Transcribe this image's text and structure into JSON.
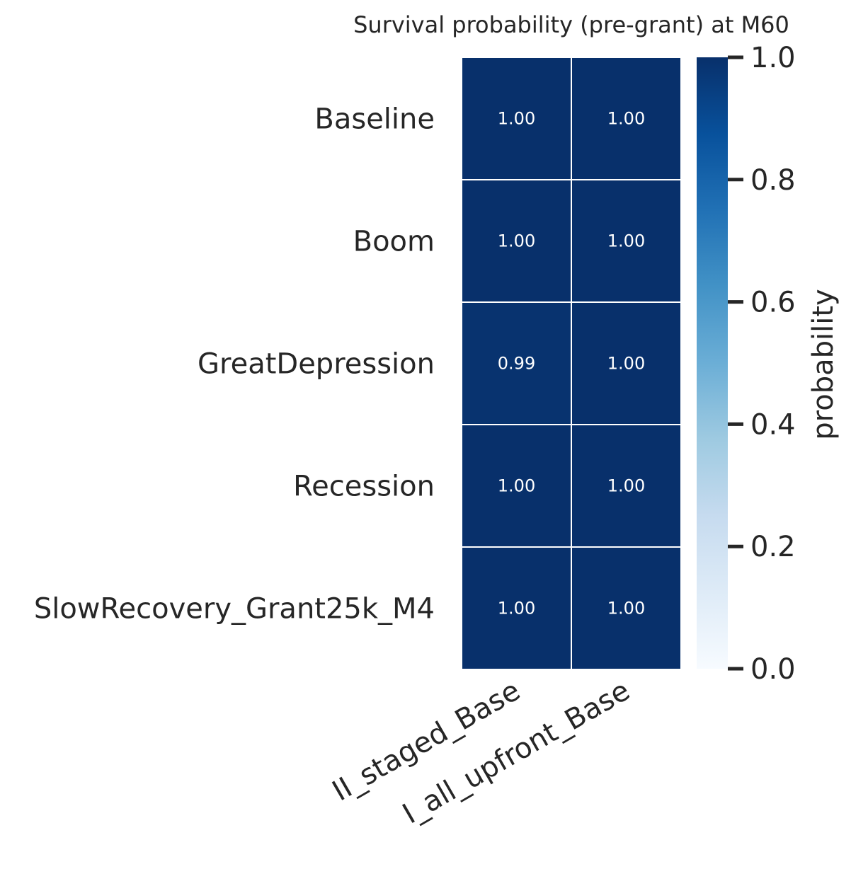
{
  "chart_data": {
    "type": "heatmap",
    "title": "Survival probability (pre-grant) at M60",
    "rows": [
      "Baseline",
      "Boom",
      "GreatDepression",
      "Recession",
      "SlowRecovery_Grant25k_M4"
    ],
    "columns": [
      "II_staged_Base",
      "I_all_upfront_Base"
    ],
    "values": [
      [
        1.0,
        1.0
      ],
      [
        1.0,
        1.0
      ],
      [
        0.99,
        1.0
      ],
      [
        1.0,
        1.0
      ],
      [
        1.0,
        1.0
      ]
    ],
    "cell_labels": [
      [
        "1.00",
        "1.00"
      ],
      [
        "1.00",
        "1.00"
      ],
      [
        "0.99",
        "1.00"
      ],
      [
        "1.00",
        "1.00"
      ],
      [
        "1.00",
        "1.00"
      ]
    ],
    "colorbar": {
      "label": "probability",
      "range": [
        0.0,
        1.0
      ],
      "ticks": [
        0.0,
        0.2,
        0.4,
        0.6,
        0.8,
        1.0
      ],
      "tick_labels": [
        "0.0",
        "0.2",
        "0.4",
        "0.6",
        "0.8",
        "1.0"
      ],
      "colormap": "Blues",
      "colors": [
        "#f7fbff",
        "#deebf7",
        "#c6dbef",
        "#9ecae1",
        "#6baed6",
        "#4292c6",
        "#2171b5",
        "#08519c",
        "#08306b"
      ]
    },
    "cell_text_color": "#ffffff",
    "cell_border_color": "#ffffff",
    "text_color": "#262626",
    "grid": false
  }
}
